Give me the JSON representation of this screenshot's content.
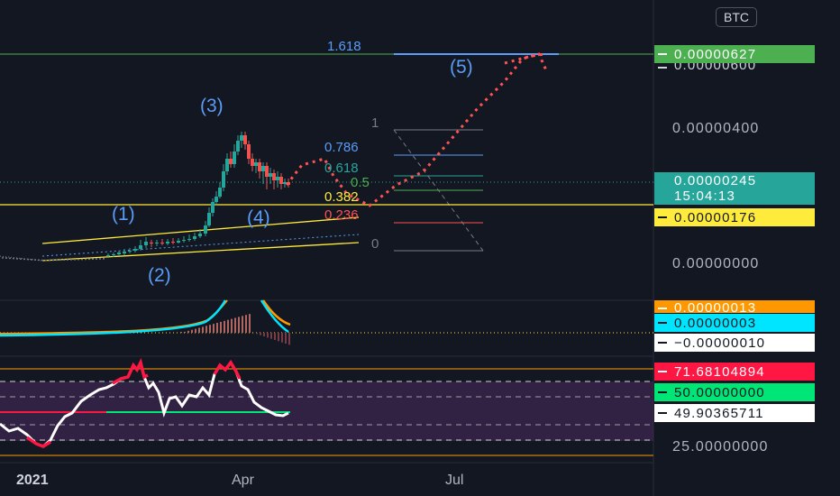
{
  "symbol_badge": "BTC",
  "waves": [
    "(1)",
    "(2)",
    "(3)",
    "(4)",
    "(5)"
  ],
  "fib_levels": [
    "1.618",
    "1",
    "0.786",
    "0.618",
    "0.5",
    "0.382",
    "0.236",
    "0"
  ],
  "price_axis": {
    "label_400": "0.00000400",
    "label_0": "0.00000000",
    "label_25": "25.00000000"
  },
  "price_tags": {
    "green_top": "0.00000627",
    "green_top_behind": "0.00000600",
    "current_price": "0.00000245",
    "countdown": "15:04:13",
    "yellow": "0.00000176",
    "orange": "0.00000013",
    "cyan": "0.00000003",
    "white_hist": "−0.00000010",
    "red_rsi": "71.68104894",
    "green_rsi": "50.00000000",
    "white_rsi": "49.90365711"
  },
  "time_axis": [
    "2021",
    "Apr",
    "Jul"
  ],
  "colors": {
    "background": "#131722",
    "green": "#4caf50",
    "teal": "#26a69a",
    "yellow": "#ffeb3b",
    "orange": "#ff9800",
    "cyan": "#00e5ff",
    "red": "#ff1744",
    "bright_green": "#00e676",
    "blue": "#5b9cf6"
  }
}
